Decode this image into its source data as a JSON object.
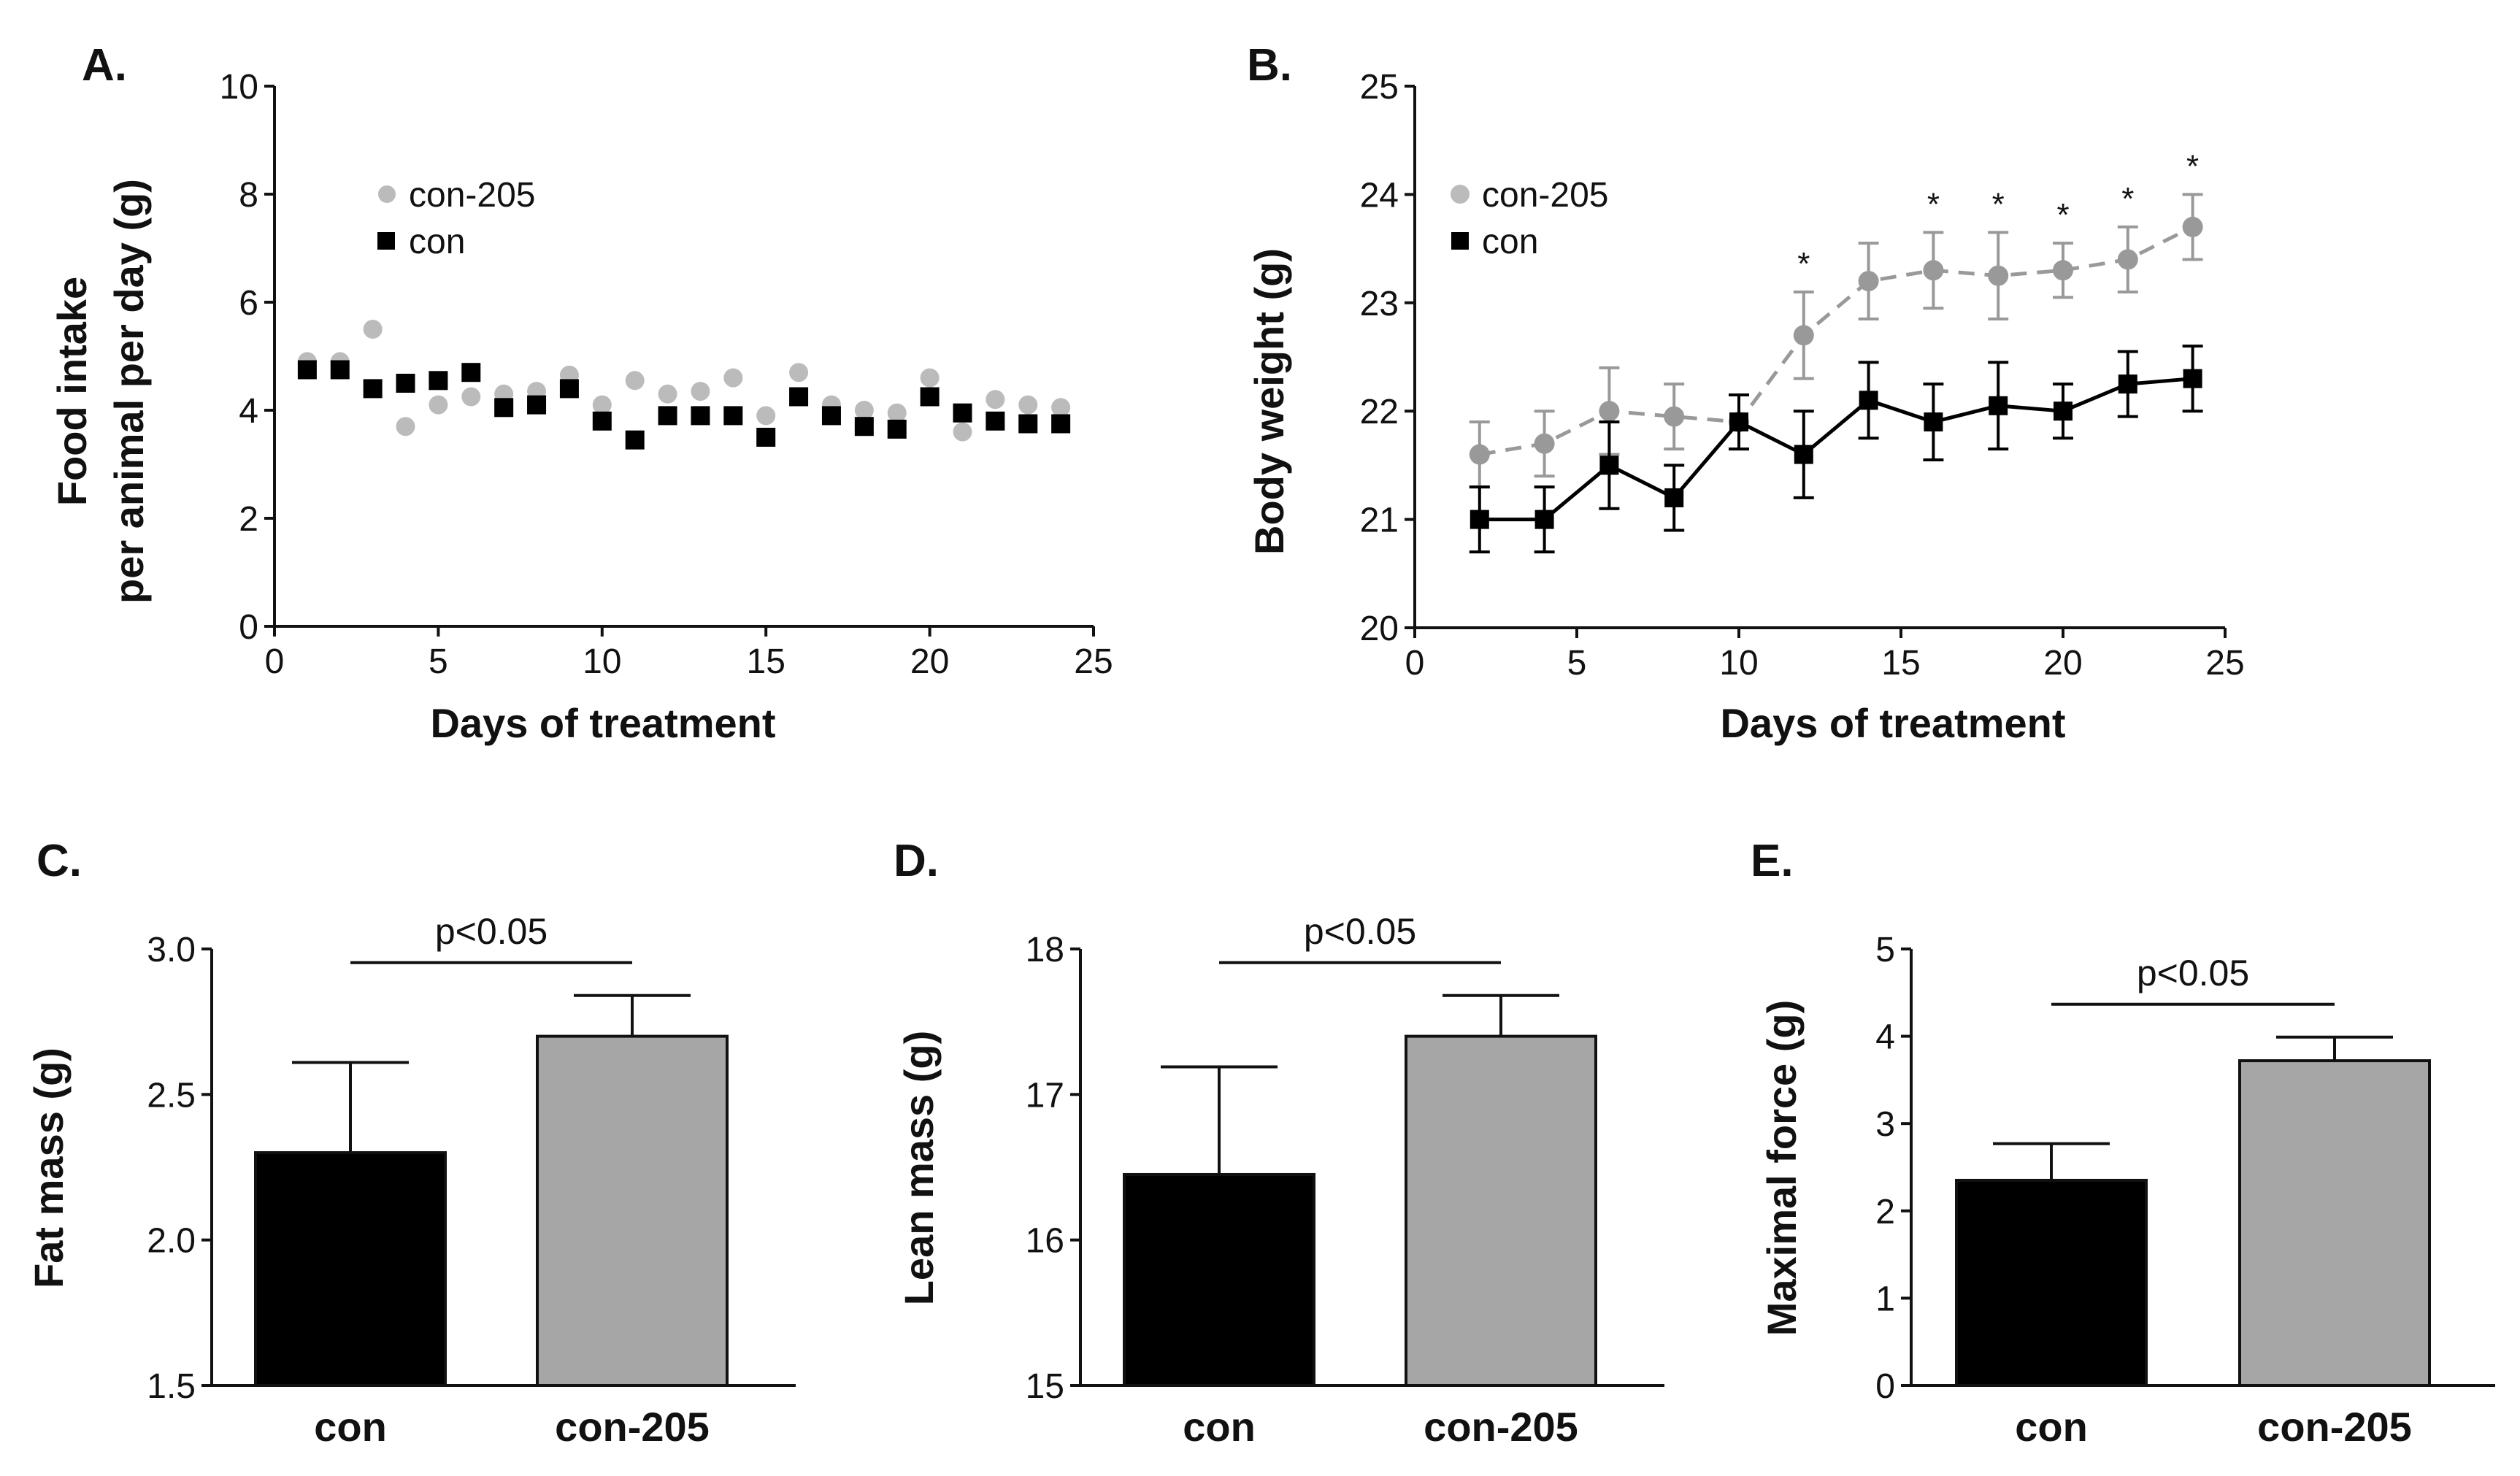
{
  "colors": {
    "con": "#000000",
    "con205": "#999999",
    "con205_marker": "#bbbbbb",
    "axis": "#111111"
  },
  "chart_data": [
    {
      "id": "A",
      "type": "scatter",
      "panel_label": "A.",
      "xlabel": "Days of treatment",
      "ylabel": [
        "Food intake",
        "per animal per day (g)"
      ],
      "xlim": [
        0,
        25
      ],
      "ylim": [
        0,
        10
      ],
      "xticks": [
        0,
        5,
        10,
        15,
        20,
        25
      ],
      "yticks": [
        0,
        2,
        4,
        6,
        8,
        10
      ],
      "legend": [
        "con-205",
        "con"
      ],
      "legend_position": "top-left",
      "series": [
        {
          "name": "con-205",
          "marker": "circle",
          "x": [
            1,
            2,
            3,
            4,
            5,
            6,
            7,
            8,
            9,
            10,
            11,
            12,
            13,
            14,
            15,
            16,
            17,
            18,
            19,
            20,
            21,
            22,
            23,
            24
          ],
          "y": [
            4.9,
            4.9,
            5.5,
            3.7,
            4.1,
            4.25,
            4.3,
            4.35,
            4.65,
            4.1,
            4.55,
            4.3,
            4.35,
            4.6,
            3.9,
            4.7,
            4.1,
            4.0,
            3.95,
            4.6,
            3.6,
            4.2,
            4.1,
            4.05
          ]
        },
        {
          "name": "con",
          "marker": "square",
          "x": [
            1,
            2,
            3,
            4,
            5,
            6,
            7,
            8,
            9,
            10,
            11,
            12,
            13,
            14,
            15,
            16,
            17,
            18,
            19,
            20,
            21,
            22,
            23,
            24
          ],
          "y": [
            4.75,
            4.75,
            4.4,
            4.5,
            4.55,
            4.7,
            4.05,
            4.1,
            4.4,
            3.8,
            3.45,
            3.9,
            3.9,
            3.9,
            3.5,
            4.25,
            3.9,
            3.7,
            3.65,
            4.25,
            3.95,
            3.8,
            3.75,
            3.75
          ]
        }
      ]
    },
    {
      "id": "B",
      "type": "line",
      "panel_label": "B.",
      "xlabel": "Days of treatment",
      "ylabel": "Body weight (g)",
      "xlim": [
        0,
        25
      ],
      "ylim": [
        20,
        25
      ],
      "xticks": [
        0,
        5,
        10,
        15,
        20,
        25
      ],
      "yticks": [
        20,
        21,
        22,
        23,
        24,
        25
      ],
      "legend": [
        "con-205",
        "con"
      ],
      "legend_position": "top-left",
      "series": [
        {
          "name": "con-205",
          "marker": "circle",
          "line": "dashed",
          "x": [
            2,
            4,
            6,
            8,
            10,
            12,
            14,
            16,
            18,
            20,
            22,
            24
          ],
          "y": [
            21.6,
            21.7,
            22.0,
            21.95,
            21.9,
            22.7,
            23.2,
            23.3,
            23.25,
            23.3,
            23.4,
            23.7
          ],
          "err": [
            0.3,
            0.3,
            0.4,
            0.3,
            0.25,
            0.4,
            0.35,
            0.35,
            0.4,
            0.25,
            0.3,
            0.3
          ]
        },
        {
          "name": "con",
          "marker": "square",
          "line": "solid",
          "x": [
            2,
            4,
            6,
            8,
            10,
            12,
            14,
            16,
            18,
            20,
            22,
            24
          ],
          "y": [
            21.0,
            21.0,
            21.5,
            21.2,
            21.9,
            21.6,
            22.1,
            21.9,
            22.05,
            22.0,
            22.25,
            22.3
          ],
          "err": [
            0.3,
            0.3,
            0.4,
            0.3,
            0.25,
            0.4,
            0.35,
            0.35,
            0.4,
            0.25,
            0.3,
            0.3
          ]
        }
      ],
      "annotations": [
        {
          "x": 12,
          "text": "*"
        },
        {
          "x": 16,
          "text": "*"
        },
        {
          "x": 18,
          "text": "*"
        },
        {
          "x": 20,
          "text": "*"
        },
        {
          "x": 22,
          "text": "*"
        },
        {
          "x": 24,
          "text": "*"
        }
      ]
    },
    {
      "id": "C",
      "type": "bar",
      "panel_label": "C.",
      "ylabel": "Fat mass (g)",
      "categories": [
        "con",
        "con-205"
      ],
      "values": [
        2.3,
        2.7
      ],
      "err": [
        0.31,
        0.14
      ],
      "ylim": [
        1.5,
        3.0
      ],
      "yticks": [
        "1.5",
        "2.0",
        "2.5",
        "3.0"
      ],
      "significance": "p<0.05"
    },
    {
      "id": "D",
      "type": "bar",
      "panel_label": "D.",
      "ylabel": "Lean mass (g)",
      "categories": [
        "con",
        "con-205"
      ],
      "values": [
        16.45,
        17.4
      ],
      "err": [
        0.74,
        0.28
      ],
      "ylim": [
        15,
        18
      ],
      "yticks": [
        "15",
        "16",
        "17",
        "18"
      ],
      "significance": "p<0.05"
    },
    {
      "id": "E",
      "type": "bar",
      "panel_label": "E.",
      "ylabel": "Maximal force (g)",
      "categories": [
        "con",
        "con-205"
      ],
      "values": [
        2.35,
        3.72
      ],
      "err": [
        0.42,
        0.27
      ],
      "ylim": [
        0,
        5
      ],
      "yticks": [
        "0",
        "1",
        "2",
        "3",
        "4",
        "5"
      ],
      "significance": "p<0.05"
    }
  ]
}
